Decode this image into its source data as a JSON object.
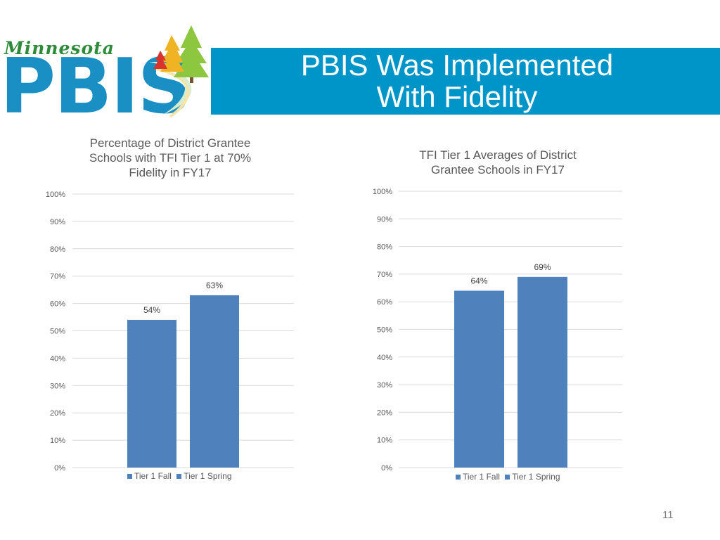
{
  "logo": {
    "script_text": "Minnesota",
    "wordmark": "PBIS"
  },
  "header": {
    "title_line1": "PBIS Was Implemented",
    "title_line2": "With Fidelity"
  },
  "colors": {
    "banner": "#0095c8",
    "bar": "#4f81bd",
    "grid": "#d9d9d9"
  },
  "page_number": "11",
  "chart_data": [
    {
      "type": "bar",
      "title_lines": [
        "Percentage of District Grantee",
        "Schools with TFI Tier 1 at 70%",
        "Fidelity in FY17"
      ],
      "categories": [
        "Tier 1 Fall",
        "Tier 1 Spring"
      ],
      "values": [
        54,
        63
      ],
      "data_labels": [
        "54%",
        "63%"
      ],
      "ylim": [
        0,
        100
      ],
      "yticks": [
        "0%",
        "10%",
        "20%",
        "30%",
        "40%",
        "50%",
        "60%",
        "70%",
        "80%",
        "90%",
        "100%"
      ],
      "grid": true,
      "legend": "bottom"
    },
    {
      "type": "bar",
      "title_lines": [
        "TFI Tier 1 Averages of District",
        "Grantee Schools in FY17"
      ],
      "categories": [
        "Tier 1 Fall",
        "Tier 1 Spring"
      ],
      "values": [
        64,
        69
      ],
      "data_labels": [
        "64%",
        "69%"
      ],
      "ylim": [
        0,
        100
      ],
      "yticks": [
        "0%",
        "10%",
        "20%",
        "30%",
        "40%",
        "50%",
        "60%",
        "70%",
        "80%",
        "90%",
        "100%"
      ],
      "grid": true,
      "legend": "bottom"
    }
  ]
}
